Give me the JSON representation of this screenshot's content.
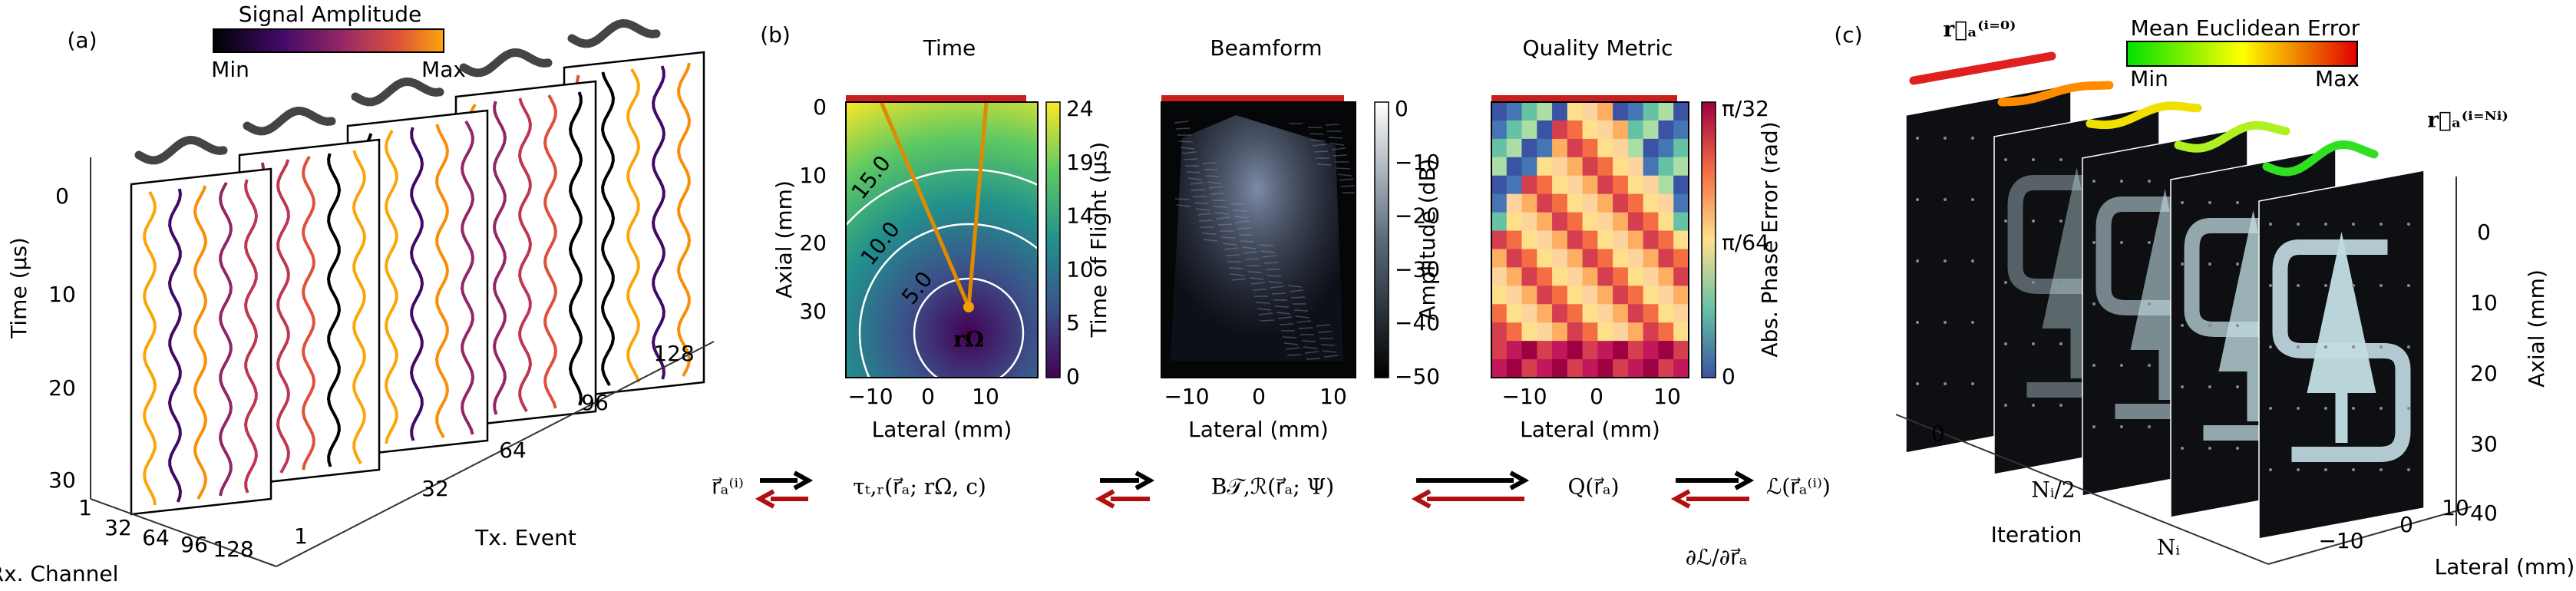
{
  "panel_a": {
    "label": "(a)",
    "colorbar": {
      "title": "Signal Amplitude",
      "min": "Min",
      "max": "Max"
    },
    "time_axis": {
      "label": "Time (µs)",
      "ticks": [
        "0",
        "10",
        "20",
        "30"
      ]
    },
    "rx_axis": {
      "label": "Rx. Channel",
      "ticks": [
        "1",
        "32",
        "64",
        "96",
        "128"
      ]
    },
    "tx_axis": {
      "label": "Tx. Event",
      "ticks": [
        "1",
        "32",
        "64",
        "96",
        "128"
      ]
    }
  },
  "panel_b": {
    "label": "(b)",
    "plots": [
      {
        "title": "Time",
        "y_label": "Axial (mm)",
        "y_ticks": [
          "0",
          "10",
          "20",
          "30"
        ],
        "x_label": "Lateral (mm)",
        "x_ticks": [
          "−10",
          "0",
          "10"
        ],
        "colorbar_label": "Time of Flight (µs)",
        "colorbar_ticks": [
          "24",
          "19",
          "14",
          "10",
          "5",
          "0"
        ],
        "contour_labels": [
          "15.0",
          "10.0",
          "5.0"
        ],
        "point_label": "rΩ"
      },
      {
        "title": "Beamform",
        "x_label": "Lateral (mm)",
        "x_ticks": [
          "−10",
          "0",
          "10"
        ],
        "colorbar_label": "Amplitude (dB)",
        "colorbar_ticks": [
          "0",
          "−10",
          "−20",
          "−30",
          "−40",
          "−50"
        ]
      },
      {
        "title": "Quality Metric",
        "x_label": "Lateral (mm)",
        "x_ticks": [
          "−10",
          "0",
          "10"
        ],
        "colorbar_label": "Abs. Phase Error (rad)",
        "colorbar_ticks": [
          "π/32",
          "π/64",
          "0"
        ]
      }
    ],
    "equation": {
      "terms": [
        "r⃗ₐ⁽ⁱ⁾",
        "τₜ,ᵣ(r⃗ₐ; rΩ, c)",
        "B𝒯,ℛ(r⃗ₐ; Ψ)",
        "Q(r⃗ₐ)",
        "ℒ(r⃗ₐ⁽ⁱ⁾)"
      ],
      "gradient": "∂ℒ/∂r⃗ₐ"
    }
  },
  "panel_c": {
    "label": "(c)",
    "start_label": "r⃗ₐ⁽ⁱ⁼⁰⁾",
    "end_label": "r⃗ₐ⁽ⁱ⁼ᴺⁱ⁾",
    "colorbar": {
      "title": "Mean Euclidean Error",
      "min": "Min",
      "max": "Max"
    },
    "axial_axis": {
      "label": "Axial (mm)",
      "ticks": [
        "0",
        "10",
        "20",
        "30",
        "40"
      ]
    },
    "lateral_axis": {
      "label": "Lateral (mm)",
      "ticks": [
        "−10",
        "0",
        "10"
      ]
    },
    "iteration_axis": {
      "label": "Iteration",
      "ticks": [
        "0",
        "Nᵢ/2",
        "Nᵢ"
      ]
    }
  }
}
